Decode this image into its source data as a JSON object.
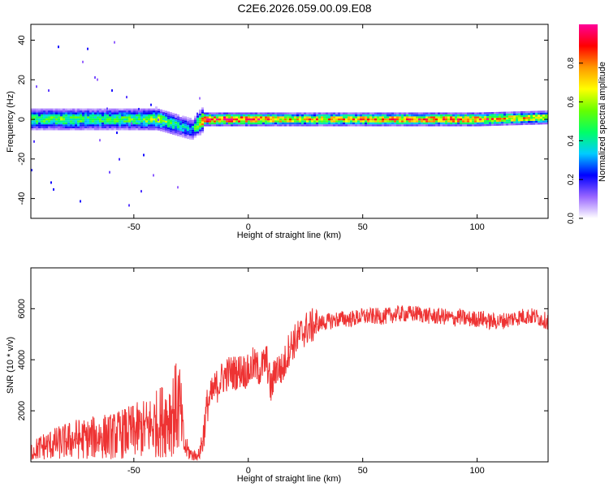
{
  "figure_title": "C2E6.2026.059.00.09.E08",
  "colors": {
    "line": "#ee3333",
    "axis": "#000000",
    "background": "#ffffff"
  },
  "chart_data": [
    {
      "type": "heatmap",
      "title": "",
      "xlabel": "Height of straight line (km)",
      "ylabel": "Frequency (Hz)",
      "xlim": [
        -95,
        131
      ],
      "ylim": [
        -50,
        48
      ],
      "x_ticks": [
        -50,
        0,
        50,
        100
      ],
      "y_ticks": [
        -40,
        -20,
        0,
        20,
        40
      ],
      "colorbar": {
        "label": "Normalized spectral amplitude",
        "range": [
          0.0,
          1.0
        ],
        "ticks": [
          0.0,
          0.2,
          0.4,
          0.6,
          0.8
        ],
        "colormap": [
          "#ffffff",
          "#9966ff",
          "#0000ff",
          "#00ccff",
          "#00ff66",
          "#66ff00",
          "#ffff00",
          "#ff9900",
          "#ff0000",
          "#ff0099"
        ]
      },
      "description_points": {
        "x": [
          -95,
          -80,
          -60,
          -40,
          -25,
          -20,
          0,
          20,
          50,
          80,
          100,
          131
        ],
        "center_freq": [
          0,
          0,
          0,
          0,
          -5,
          0,
          0,
          0,
          0,
          0,
          0,
          1
        ],
        "peak_amplitude": [
          0.45,
          0.5,
          0.45,
          0.55,
          0.3,
          0.9,
          0.85,
          0.7,
          0.75,
          0.8,
          0.8,
          0.6
        ]
      }
    },
    {
      "type": "line",
      "title": "",
      "xlabel": "Height of straight line (km)",
      "ylabel": "SNR (10 * v/v)",
      "xlim": [
        -95,
        131
      ],
      "ylim": [
        0,
        7600
      ],
      "x_ticks": [
        -50,
        0,
        50,
        100
      ],
      "y_ticks": [
        2000,
        4000,
        6000
      ],
      "series": [
        {
          "name": "SNR",
          "x": [
            -95,
            -90,
            -85,
            -80,
            -75,
            -70,
            -65,
            -60,
            -55,
            -50,
            -45,
            -40,
            -35,
            -30,
            -28,
            -25,
            -22,
            -20,
            -18,
            -15,
            -12,
            -10,
            -8,
            -5,
            -3,
            0,
            2,
            5,
            8,
            10,
            12,
            15,
            18,
            20,
            22,
            25,
            30,
            35,
            40,
            45,
            50,
            55,
            60,
            65,
            70,
            75,
            80,
            85,
            90,
            92,
            95,
            100,
            103,
            105,
            110,
            115,
            120,
            125,
            131
          ],
          "values": [
            400,
            600,
            700,
            800,
            900,
            900,
            1000,
            1000,
            1100,
            1200,
            1300,
            1500,
            1800,
            2200,
            600,
            300,
            200,
            800,
            2200,
            2800,
            3200,
            3400,
            3500,
            3500,
            3600,
            3500,
            3800,
            3600,
            4000,
            2800,
            3700,
            3600,
            4500,
            4700,
            4900,
            5200,
            5400,
            5500,
            5600,
            5600,
            5700,
            5700,
            5700,
            5800,
            5800,
            5800,
            5700,
            5700,
            5600,
            5700,
            5600,
            5600,
            5600,
            5500,
            5500,
            5600,
            5700,
            5700,
            5500
          ]
        }
      ]
    }
  ]
}
